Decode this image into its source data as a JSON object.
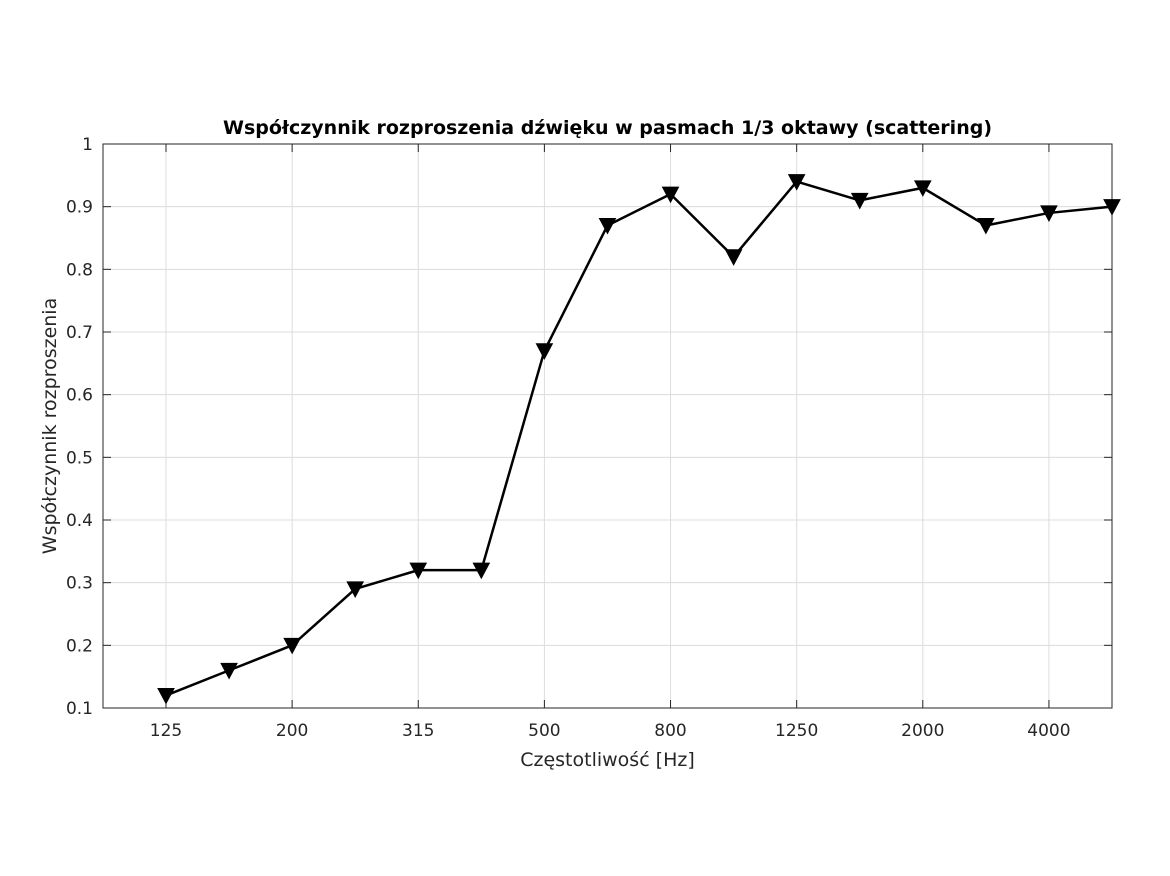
{
  "chart_data": {
    "type": "line",
    "title": "Współczynnik rozproszenia dźwięku w pasmach 1/3 oktawy (scattering)",
    "xlabel": "Częstotliwość [Hz]",
    "ylabel": "Współczynnik rozproszenia",
    "x": [
      125,
      160,
      200,
      250,
      315,
      400,
      500,
      630,
      800,
      1000,
      1250,
      1600,
      2000,
      2500,
      4000,
      5000
    ],
    "xticklabels": [
      "125",
      "200",
      "315",
      "500",
      "800",
      "1250",
      "2000",
      "4000"
    ],
    "yticks": [
      0.1,
      0.2,
      0.3,
      0.4,
      0.5,
      0.6,
      0.7,
      0.8,
      0.9,
      1
    ],
    "yticklabels": [
      "0.1",
      "0.2",
      "0.3",
      "0.4",
      "0.5",
      "0.6",
      "0.7",
      "0.8",
      "0.9",
      "1"
    ],
    "ylim": [
      0.1,
      1
    ],
    "grid": true,
    "series": [
      {
        "marker": "triangle-down",
        "color": "#000000",
        "values": [
          0.12,
          0.16,
          0.2,
          0.29,
          0.32,
          0.32,
          0.67,
          0.87,
          0.92,
          0.82,
          0.94,
          0.91,
          0.93,
          0.87,
          0.89,
          0.9
        ]
      }
    ]
  }
}
